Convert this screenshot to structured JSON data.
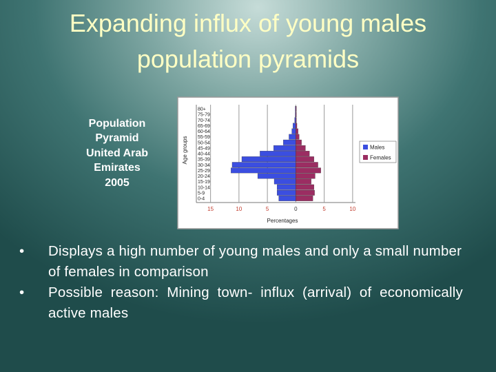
{
  "slide": {
    "title": [
      "Expanding influx of young males",
      "population pyramids"
    ],
    "caption": [
      "Population",
      "Pyramid",
      "United Arab",
      "Emirates",
      "2005"
    ],
    "bullets": [
      "Displays a high number of young males and only a small number of females in comparison",
      "Possible reason: Mining town- influx (arrival) of economically active males"
    ]
  },
  "chart_data": {
    "type": "pyramid",
    "categories": [
      "0-4",
      "5-9",
      "10-14",
      "15-19",
      "20-24",
      "25-29",
      "30-34",
      "35-39",
      "40-44",
      "45-49",
      "50-54",
      "55-59",
      "60-64",
      "65-69",
      "70-74",
      "75-79",
      "80+"
    ],
    "series": [
      {
        "name": "Males",
        "color": "#3b4ee0",
        "values": [
          -3.0,
          -3.3,
          -3.3,
          -3.8,
          -6.7,
          -11.4,
          -11.2,
          -9.5,
          -6.3,
          -3.9,
          -2.2,
          -1.2,
          -0.7,
          -0.5,
          -0.2,
          -0.1,
          -0.1
        ]
      },
      {
        "name": "Females",
        "color": "#9b2d62",
        "values": [
          3.0,
          3.3,
          3.2,
          2.7,
          3.4,
          4.4,
          3.9,
          3.2,
          2.4,
          1.7,
          1.0,
          0.6,
          0.4,
          0.2,
          0.1,
          0.1,
          0.1
        ]
      }
    ],
    "xlim": [
      -17.5,
      10.5
    ],
    "xticks": [
      {
        "value": -15,
        "label": "15"
      },
      {
        "value": -10,
        "label": "10"
      },
      {
        "value": -5,
        "label": "5"
      },
      0,
      5,
      10
    ],
    "xlabel": "Percentages",
    "ylabel": "Age groups",
    "grid": true,
    "legend": "right"
  }
}
